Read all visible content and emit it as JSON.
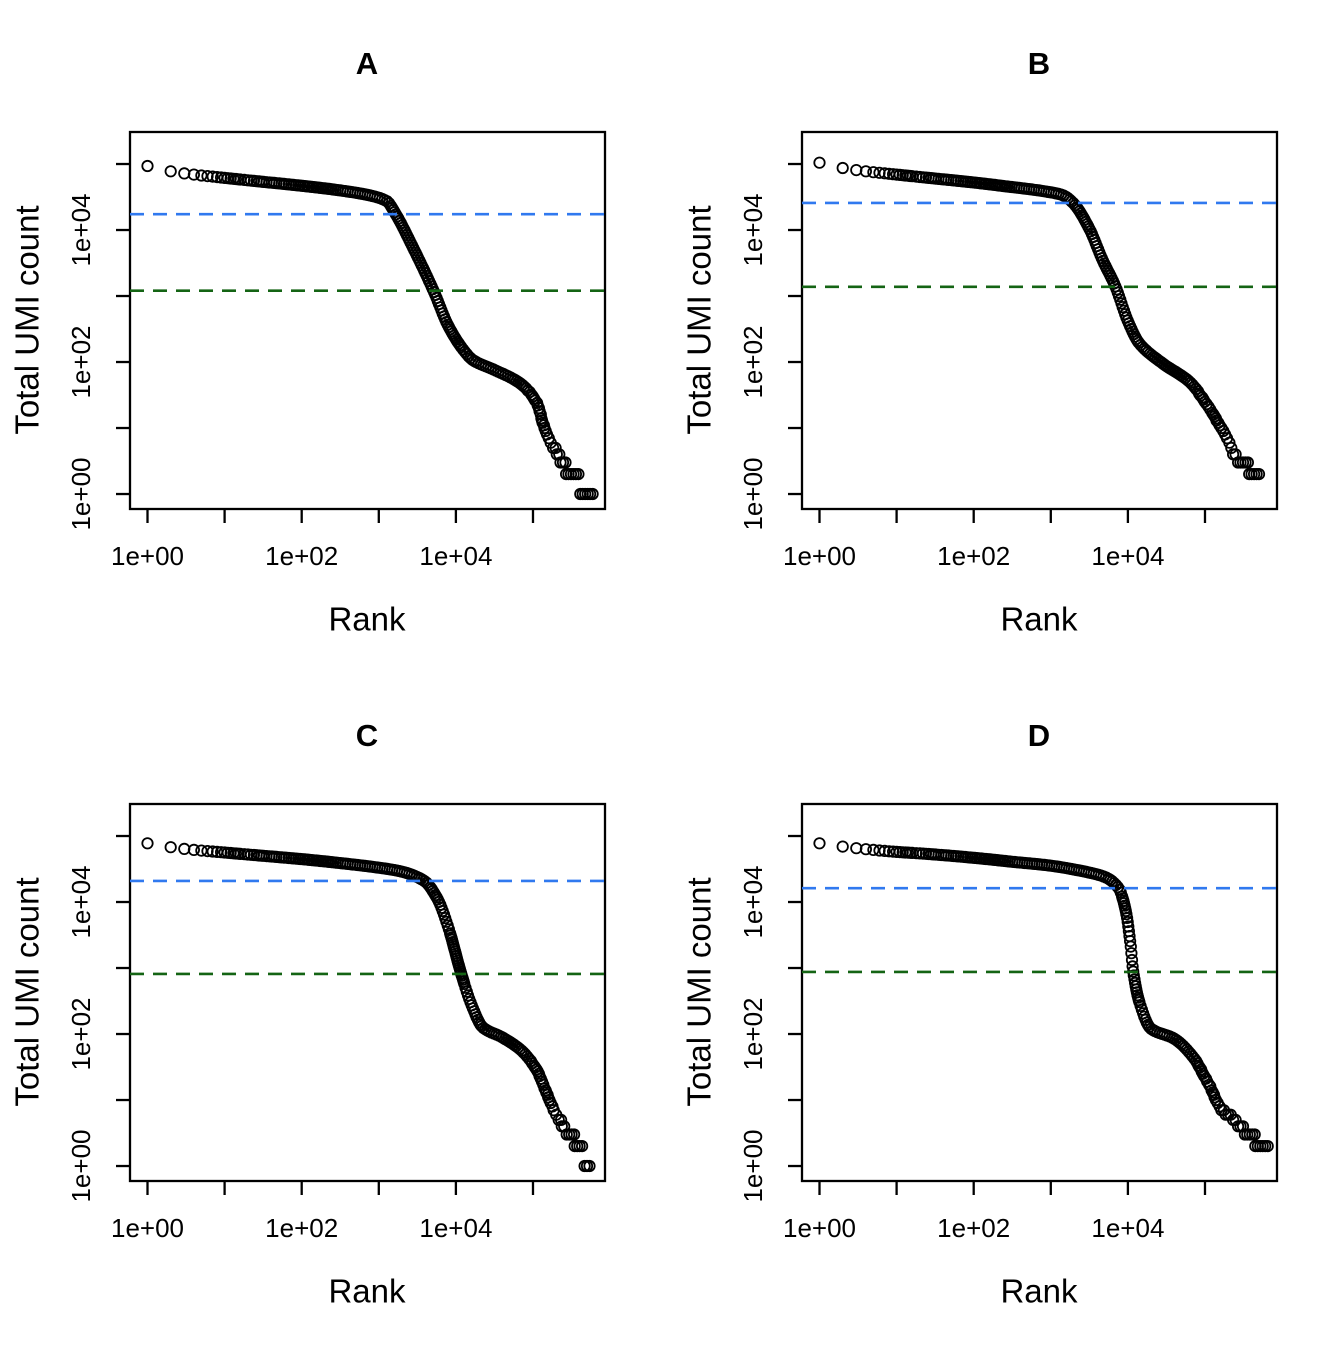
{
  "figure": {
    "background": "#ffffff",
    "layout": "2x2 grid of barcode-rank scatter plots",
    "panel_titles": [
      "A",
      "B",
      "C",
      "D"
    ]
  },
  "colors": {
    "point_stroke": "#000000",
    "axis": "#000000",
    "knee_line_blue": "#3079EF",
    "inflection_line_green": "#146414"
  },
  "chart_data": [
    {
      "panel": "A",
      "type": "scatter",
      "title": "A",
      "xlabel": "Rank",
      "ylabel": "Total UMI count",
      "x_scale": "log10",
      "y_scale": "log10",
      "marker": "open-circle",
      "xlim_log10": [
        -0.227,
        5.934
      ],
      "ylim_log10": [
        -0.227,
        5.485
      ],
      "x_ticks": [
        {
          "log10": 0,
          "label": "1e+00"
        },
        {
          "log10": 1,
          "label": ""
        },
        {
          "log10": 2,
          "label": "1e+02"
        },
        {
          "log10": 3,
          "label": ""
        },
        {
          "log10": 4,
          "label": "1e+04"
        },
        {
          "log10": 5,
          "label": ""
        }
      ],
      "y_ticks": [
        {
          "log10": 0,
          "label": "1e+00"
        },
        {
          "log10": 1,
          "label": ""
        },
        {
          "log10": 2,
          "label": "1e+02"
        },
        {
          "log10": 3,
          "label": ""
        },
        {
          "log10": 4,
          "label": "1e+04"
        },
        {
          "log10": 5,
          "label": ""
        }
      ],
      "knee_line": {
        "y_log10": 4.24,
        "approx_value": 17000,
        "color": "#3079EF",
        "style": "dashed"
      },
      "inflection_line": {
        "y_log10": 3.08,
        "approx_value": 1200,
        "color": "#146414",
        "style": "dashed"
      },
      "curve_log10_points": [
        [
          0,
          4.97
        ],
        [
          0.3,
          4.89
        ],
        [
          0.6,
          4.84
        ],
        [
          1.0,
          4.79
        ],
        [
          1.5,
          4.73
        ],
        [
          2.0,
          4.67
        ],
        [
          2.5,
          4.6
        ],
        [
          2.9,
          4.52
        ],
        [
          3.1,
          4.44
        ],
        [
          3.22,
          4.24
        ],
        [
          3.45,
          3.72
        ],
        [
          3.71,
          3.08
        ],
        [
          3.9,
          2.55
        ],
        [
          4.1,
          2.18
        ],
        [
          4.22,
          2.03
        ],
        [
          4.5,
          1.88
        ],
        [
          4.83,
          1.68
        ],
        [
          5.05,
          1.38
        ],
        [
          5.13,
          1.08
        ],
        [
          5.22,
          0.82
        ],
        [
          5.32,
          0.62
        ],
        [
          5.39,
          0.45
        ],
        [
          5.53,
          0.27
        ],
        [
          5.66,
          0.12
        ],
        [
          5.78,
          0.0
        ]
      ]
    },
    {
      "panel": "B",
      "type": "scatter",
      "title": "B",
      "xlabel": "Rank",
      "ylabel": "Total UMI count",
      "x_scale": "log10",
      "y_scale": "log10",
      "marker": "open-circle",
      "xlim_log10": [
        -0.227,
        5.934
      ],
      "ylim_log10": [
        -0.227,
        5.485
      ],
      "x_ticks": [
        {
          "log10": 0,
          "label": "1e+00"
        },
        {
          "log10": 1,
          "label": ""
        },
        {
          "log10": 2,
          "label": "1e+02"
        },
        {
          "log10": 3,
          "label": ""
        },
        {
          "log10": 4,
          "label": "1e+04"
        },
        {
          "log10": 5,
          "label": ""
        }
      ],
      "y_ticks": [
        {
          "log10": 0,
          "label": "1e+00"
        },
        {
          "log10": 1,
          "label": ""
        },
        {
          "log10": 2,
          "label": "1e+02"
        },
        {
          "log10": 3,
          "label": ""
        },
        {
          "log10": 4,
          "label": "1e+04"
        },
        {
          "log10": 5,
          "label": ""
        }
      ],
      "knee_line": {
        "y_log10": 4.41,
        "approx_value": 26000,
        "color": "#3079EF",
        "style": "dashed"
      },
      "inflection_line": {
        "y_log10": 3.14,
        "approx_value": 1400,
        "color": "#146414",
        "style": "dashed"
      },
      "curve_log10_points": [
        [
          0,
          5.02
        ],
        [
          0.3,
          4.94
        ],
        [
          0.6,
          4.89
        ],
        [
          1.0,
          4.84
        ],
        [
          1.5,
          4.78
        ],
        [
          2.0,
          4.72
        ],
        [
          2.5,
          4.65
        ],
        [
          2.9,
          4.59
        ],
        [
          3.15,
          4.53
        ],
        [
          3.29,
          4.41
        ],
        [
          3.5,
          4.02
        ],
        [
          3.67,
          3.55
        ],
        [
          3.84,
          3.14
        ],
        [
          4.0,
          2.62
        ],
        [
          4.15,
          2.28
        ],
        [
          4.45,
          1.98
        ],
        [
          4.8,
          1.7
        ],
        [
          5.0,
          1.4
        ],
        [
          5.17,
          1.09
        ],
        [
          5.32,
          0.79
        ],
        [
          5.39,
          0.59
        ],
        [
          5.52,
          0.45
        ],
        [
          5.62,
          0.35
        ],
        [
          5.71,
          0.27
        ]
      ]
    },
    {
      "panel": "C",
      "type": "scatter",
      "title": "C",
      "xlabel": "Rank",
      "ylabel": "Total UMI count",
      "x_scale": "log10",
      "y_scale": "log10",
      "marker": "open-circle",
      "xlim_log10": [
        -0.227,
        5.934
      ],
      "ylim_log10": [
        -0.227,
        5.485
      ],
      "x_ticks": [
        {
          "log10": 0,
          "label": "1e+00"
        },
        {
          "log10": 1,
          "label": ""
        },
        {
          "log10": 2,
          "label": "1e+02"
        },
        {
          "log10": 3,
          "label": ""
        },
        {
          "log10": 4,
          "label": "1e+04"
        },
        {
          "log10": 5,
          "label": ""
        }
      ],
      "y_ticks": [
        {
          "log10": 0,
          "label": "1e+00"
        },
        {
          "log10": 1,
          "label": ""
        },
        {
          "log10": 2,
          "label": "1e+02"
        },
        {
          "log10": 3,
          "label": ""
        },
        {
          "log10": 4,
          "label": "1e+04"
        },
        {
          "log10": 5,
          "label": ""
        }
      ],
      "knee_line": {
        "y_log10": 4.32,
        "approx_value": 21000,
        "color": "#3079EF",
        "style": "dashed"
      },
      "inflection_line": {
        "y_log10": 2.91,
        "approx_value": 810,
        "color": "#146414",
        "style": "dashed"
      },
      "curve_log10_points": [
        [
          0,
          4.89
        ],
        [
          0.3,
          4.83
        ],
        [
          0.6,
          4.79
        ],
        [
          1.0,
          4.75
        ],
        [
          1.5,
          4.7
        ],
        [
          2.0,
          4.65
        ],
        [
          2.5,
          4.59
        ],
        [
          3.0,
          4.52
        ],
        [
          3.3,
          4.46
        ],
        [
          3.59,
          4.32
        ],
        [
          3.76,
          4.05
        ],
        [
          3.9,
          3.62
        ],
        [
          4.07,
          2.91
        ],
        [
          4.2,
          2.45
        ],
        [
          4.35,
          2.1
        ],
        [
          4.6,
          1.95
        ],
        [
          4.85,
          1.75
        ],
        [
          5.05,
          1.45
        ],
        [
          5.18,
          1.1
        ],
        [
          5.3,
          0.8
        ],
        [
          5.4,
          0.6
        ],
        [
          5.5,
          0.45
        ],
        [
          5.6,
          0.3
        ],
        [
          5.7,
          0.1
        ],
        [
          5.74,
          0.0
        ]
      ]
    },
    {
      "panel": "D",
      "type": "scatter",
      "title": "D",
      "xlabel": "Rank",
      "ylabel": "Total UMI count",
      "x_scale": "log10",
      "y_scale": "log10",
      "marker": "open-circle",
      "xlim_log10": [
        -0.227,
        5.934
      ],
      "ylim_log10": [
        -0.227,
        5.485
      ],
      "x_ticks": [
        {
          "log10": 0,
          "label": "1e+00"
        },
        {
          "log10": 1,
          "label": ""
        },
        {
          "log10": 2,
          "label": "1e+02"
        },
        {
          "log10": 3,
          "label": ""
        },
        {
          "log10": 4,
          "label": "1e+04"
        },
        {
          "log10": 5,
          "label": ""
        }
      ],
      "y_ticks": [
        {
          "log10": 0,
          "label": "1e+00"
        },
        {
          "log10": 1,
          "label": ""
        },
        {
          "log10": 2,
          "label": "1e+02"
        },
        {
          "log10": 3,
          "label": ""
        },
        {
          "log10": 4,
          "label": "1e+04"
        },
        {
          "log10": 5,
          "label": ""
        }
      ],
      "knee_line": {
        "y_log10": 4.21,
        "approx_value": 16000,
        "color": "#3079EF",
        "style": "dashed"
      },
      "inflection_line": {
        "y_log10": 2.94,
        "approx_value": 870,
        "color": "#146414",
        "style": "dashed"
      },
      "curve_log10_points": [
        [
          0,
          4.89
        ],
        [
          0.3,
          4.84
        ],
        [
          0.6,
          4.8
        ],
        [
          1.0,
          4.76
        ],
        [
          1.5,
          4.72
        ],
        [
          2.0,
          4.67
        ],
        [
          2.5,
          4.61
        ],
        [
          3.0,
          4.55
        ],
        [
          3.4,
          4.47
        ],
        [
          3.7,
          4.38
        ],
        [
          3.88,
          4.21
        ],
        [
          3.97,
          3.88
        ],
        [
          4.03,
          3.4
        ],
        [
          4.07,
          2.94
        ],
        [
          4.15,
          2.48
        ],
        [
          4.3,
          2.08
        ],
        [
          4.6,
          1.93
        ],
        [
          4.84,
          1.66
        ],
        [
          5.04,
          1.26
        ],
        [
          5.23,
          0.85
        ],
        [
          5.36,
          0.74
        ],
        [
          5.45,
          0.62
        ],
        [
          5.55,
          0.5
        ],
        [
          5.65,
          0.4
        ],
        [
          5.83,
          0.29
        ]
      ]
    }
  ]
}
